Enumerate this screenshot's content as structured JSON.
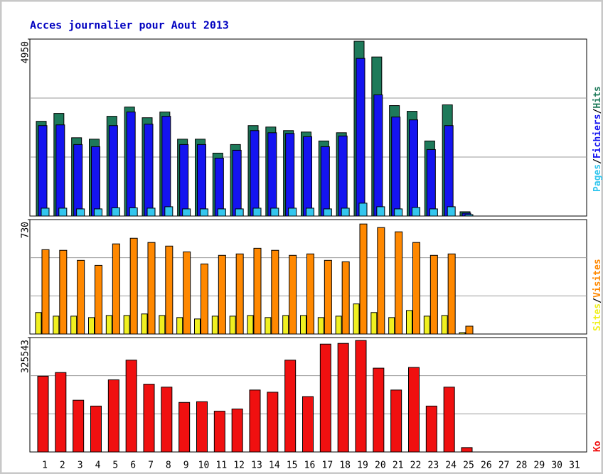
{
  "chart_data": [
    {
      "type": "bar",
      "title": "Acces journalier pour Aout 2013",
      "ylim": [
        0,
        4950
      ],
      "yticks": [
        4950
      ],
      "legend_separator": "/",
      "series": [
        {
          "name": "Pages",
          "color": "#33c6ee",
          "values": [
            220,
            220,
            200,
            200,
            230,
            230,
            220,
            260,
            200,
            200,
            200,
            200,
            220,
            220,
            220,
            220,
            200,
            220,
            360,
            260,
            200,
            240,
            200,
            260,
            40,
            null,
            null,
            null,
            null,
            null,
            null
          ]
        },
        {
          "name": "Fichiers",
          "color": "#1414f0",
          "values": [
            2530,
            2550,
            2000,
            1940,
            2530,
            2910,
            2570,
            2790,
            2000,
            2000,
            1620,
            1840,
            2390,
            2330,
            2310,
            2220,
            1940,
            2240,
            4410,
            3390,
            2770,
            2690,
            1860,
            2530,
            80,
            null,
            null,
            null,
            null,
            null,
            null
          ]
        },
        {
          "name": "Hits",
          "color": "#1e7a5a",
          "values": [
            2650,
            2870,
            2190,
            2150,
            2790,
            3050,
            2750,
            2910,
            2150,
            2150,
            1760,
            2000,
            2530,
            2490,
            2390,
            2350,
            2100,
            2330,
            4890,
            4450,
            3090,
            2930,
            2100,
            3110,
            120,
            null,
            null,
            null,
            null,
            null,
            null
          ]
        }
      ]
    },
    {
      "type": "bar",
      "ylim": [
        0,
        730
      ],
      "yticks": [
        730
      ],
      "legend_separator": "/",
      "series": [
        {
          "name": "Sites",
          "color": "#f0f020",
          "values": [
            137,
            114,
            114,
            105,
            118,
            118,
            128,
            118,
            105,
            96,
            114,
            114,
            118,
            105,
            118,
            118,
            105,
            114,
            192,
            137,
            105,
            150,
            114,
            118,
            9,
            null,
            null,
            null,
            null,
            null,
            null
          ]
        },
        {
          "name": "Visites",
          "color": "#ff8800",
          "values": [
            538,
            534,
            470,
            438,
            575,
            611,
            584,
            561,
            524,
            447,
            502,
            511,
            547,
            534,
            502,
            511,
            470,
            461,
            702,
            679,
            652,
            584,
            502,
            511,
            50,
            null,
            null,
            null,
            null,
            null,
            null
          ]
        }
      ]
    },
    {
      "type": "bar",
      "ylim": [
        0,
        325543
      ],
      "yticks": [
        325543
      ],
      "categories": [
        "1",
        "2",
        "3",
        "4",
        "5",
        "6",
        "7",
        "8",
        "9",
        "10",
        "11",
        "12",
        "13",
        "14",
        "15",
        "16",
        "17",
        "18",
        "19",
        "20",
        "21",
        "22",
        "23",
        "24",
        "25",
        "26",
        "27",
        "28",
        "29",
        "30",
        "31"
      ],
      "weekend_categories": [
        "3",
        "4",
        "10",
        "11",
        "17",
        "18",
        "24",
        "25",
        "31"
      ],
      "weekend_color": "#009070",
      "series": [
        {
          "name": "Ko",
          "color": "#f01010",
          "values": [
            215644,
            226012,
            147219,
            130632,
            205277,
            261264,
            192837,
            184544,
            140999,
            143073,
            116118,
            122339,
            176251,
            170029,
            261264,
            157590,
            306886,
            308960,
            317250,
            238456,
            176251,
            240527,
            130632,
            184544,
            12441,
            null,
            null,
            null,
            null,
            null,
            null
          ]
        }
      ]
    }
  ]
}
